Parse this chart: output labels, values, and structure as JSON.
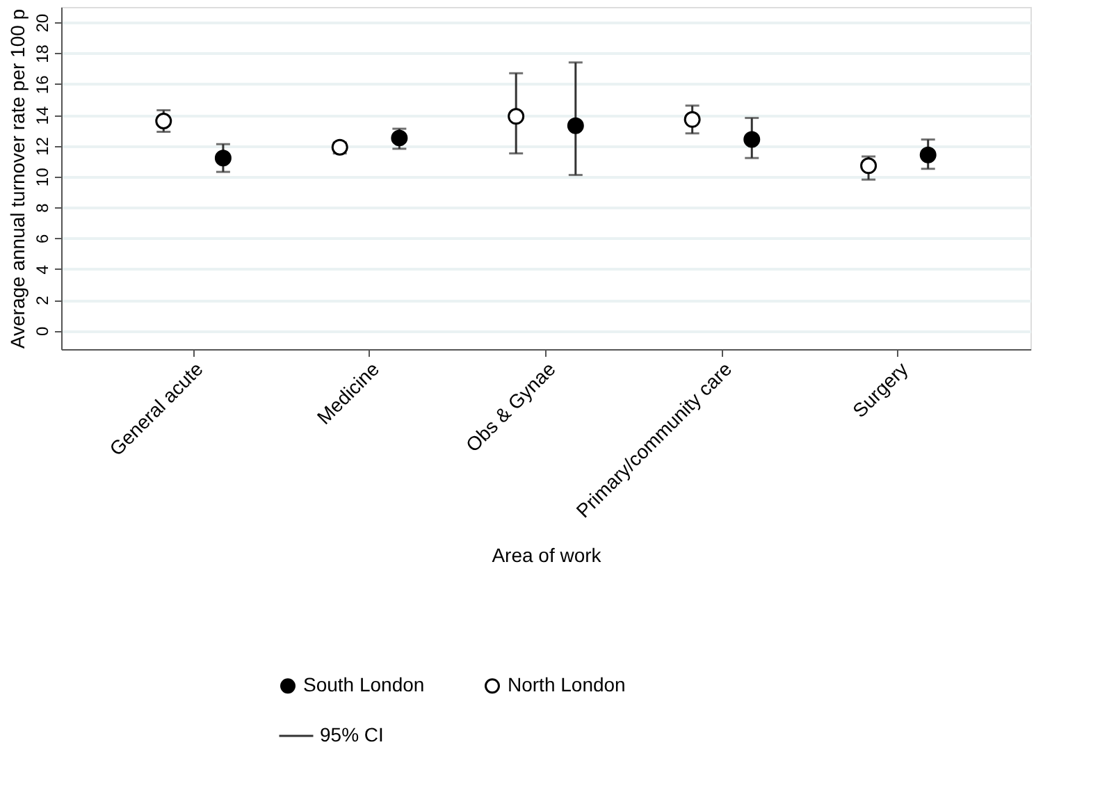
{
  "chart_data": {
    "type": "scatter",
    "xlabel": "Area of work",
    "ylabel": "Average annual turnover rate per 100 p",
    "categories": [
      "General acute",
      "Medicine",
      "Obs & Gynae",
      "Primary/community care",
      "Surgery"
    ],
    "series": [
      {
        "name": "South London",
        "color": "#000000",
        "values": [
          11.2,
          12.5,
          13.3,
          12.4,
          11.4
        ],
        "errors": [
          [
            10.3,
            12.1
          ],
          [
            11.8,
            13.1
          ],
          [
            10.1,
            17.4
          ],
          [
            11.2,
            13.8
          ],
          [
            10.5,
            12.4
          ]
        ]
      },
      {
        "name": "North London",
        "color": "#000000",
        "values": [
          13.6,
          11.9,
          13.9,
          13.7,
          10.7
        ],
        "errors": [
          [
            12.9,
            14.3
          ],
          [
            11.5,
            12.2
          ],
          [
            11.5,
            16.7
          ],
          [
            12.8,
            14.6
          ],
          [
            9.8,
            11.3
          ]
        ]
      }
    ],
    "ylim": [
      -1.2,
      21
    ],
    "yticks": [
      0,
      2,
      4,
      6,
      8,
      10,
      12,
      14,
      16,
      18,
      20
    ],
    "grid": "y",
    "legend": "bottom",
    "marker": "circle",
    "annotations": [
      "95% CI"
    ]
  }
}
